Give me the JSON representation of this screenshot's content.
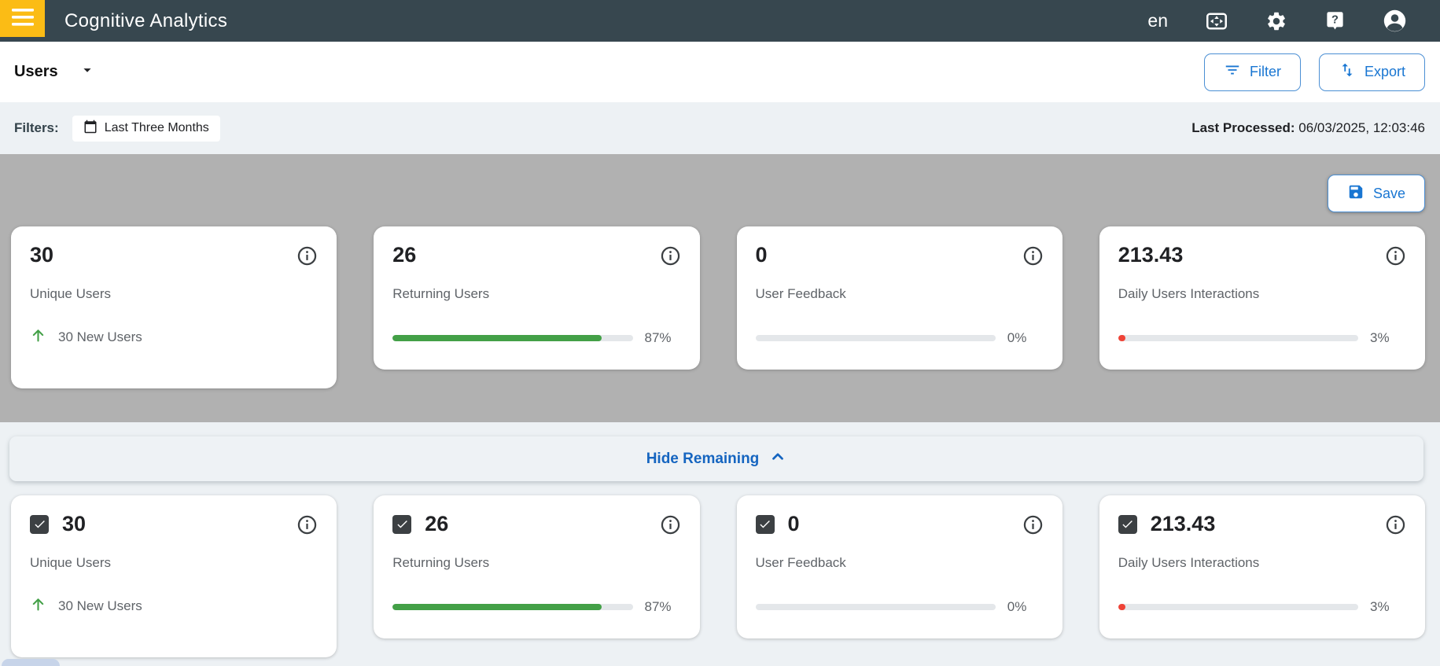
{
  "header": {
    "title": "Cognitive Analytics",
    "language": "en"
  },
  "toolbar": {
    "view_selector": "Users",
    "filter_button": "Filter",
    "export_button": "Export"
  },
  "filters_bar": {
    "label": "Filters:",
    "date_chip": "Last Three Months",
    "last_processed_label": "Last Processed:",
    "last_processed_value": "06/03/2025, 12:03:46"
  },
  "summary": {
    "save_button": "Save",
    "cards": [
      {
        "value": "30",
        "label": "Unique Users",
        "trend": "30 New Users"
      },
      {
        "value": "26",
        "label": "Returning Users",
        "progress": 87,
        "progress_label": "87%",
        "progress_color": "#43a047"
      },
      {
        "value": "0",
        "label": "User Feedback",
        "progress": 0,
        "progress_label": "0%",
        "progress_color": "#43a047"
      },
      {
        "value": "213.43",
        "label": "Daily Users Interactions",
        "progress": 3,
        "progress_label": "3%",
        "progress_color": "#ef4337"
      }
    ]
  },
  "selection": {
    "toggle_label": "Hide Remaining",
    "cards": [
      {
        "checked": true,
        "value": "30",
        "label": "Unique Users",
        "trend": "30 New Users"
      },
      {
        "checked": true,
        "value": "26",
        "label": "Returning Users",
        "progress": 87,
        "progress_label": "87%",
        "progress_color": "#43a047"
      },
      {
        "checked": true,
        "value": "0",
        "label": "User Feedback",
        "progress": 0,
        "progress_label": "0%",
        "progress_color": "#43a047"
      },
      {
        "checked": true,
        "value": "213.43",
        "label": "Daily Users Interactions",
        "progress": 3,
        "progress_label": "3%",
        "progress_color": "#ef4337"
      }
    ]
  },
  "colors": {
    "header_bg": "#37474f",
    "accent_amber": "#fbbc15",
    "primary_blue": "#1976d2",
    "link_blue": "#1565c0",
    "success_green": "#43a047",
    "danger_red": "#ef4337",
    "summary_bg": "#b1b1b1",
    "page_bg": "#edf1f4"
  }
}
